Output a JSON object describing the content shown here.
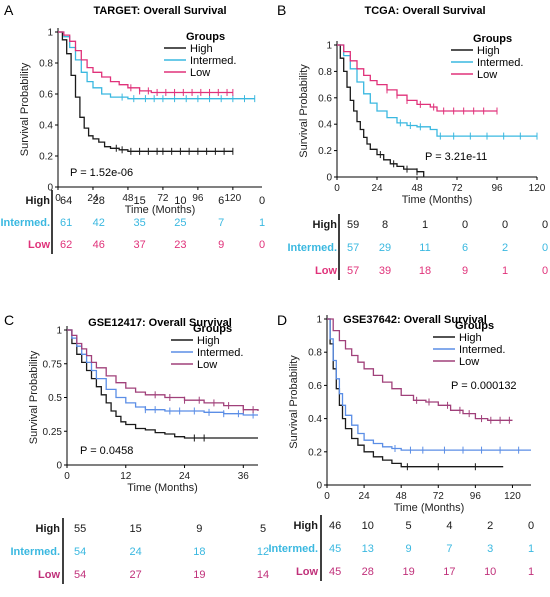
{
  "chart_data": [
    {
      "type": "line",
      "panel_letter": "A",
      "title": "TARGET: Overall Survival",
      "xlabel": "Time (Months)",
      "ylabel": "Survival Probability",
      "xlim": [
        0,
        140
      ],
      "ylim": [
        0,
        1
      ],
      "xticks": [
        0,
        24,
        48,
        72,
        96,
        120
      ],
      "yticks": [
        0,
        0.2,
        0.4,
        0.6,
        0.8,
        1
      ],
      "legend_title": "Groups",
      "legend_position": "top-right",
      "p_value": "P = 1.52e-06",
      "series": [
        {
          "name": "High",
          "color": "#1a1a1a",
          "x": [
            0,
            3,
            6,
            9,
            12,
            15,
            18,
            21,
            24,
            28,
            32,
            36,
            42,
            48,
            60,
            72,
            96,
            120
          ],
          "y": [
            1,
            0.95,
            0.86,
            0.72,
            0.58,
            0.45,
            0.38,
            0.33,
            0.31,
            0.29,
            0.26,
            0.25,
            0.24,
            0.23,
            0.23,
            0.23,
            0.23,
            0.23
          ],
          "censor_x": [
            40,
            44,
            50,
            56,
            62,
            68,
            72,
            78,
            84,
            90,
            96,
            102,
            108,
            114,
            120
          ]
        },
        {
          "name": "Intermed.",
          "color": "#3ab8e0",
          "x": [
            0,
            4,
            8,
            12,
            16,
            20,
            24,
            30,
            36,
            42,
            48,
            60,
            72,
            96,
            120,
            135
          ],
          "y": [
            1,
            0.97,
            0.9,
            0.82,
            0.74,
            0.68,
            0.64,
            0.6,
            0.58,
            0.58,
            0.57,
            0.57,
            0.57,
            0.57,
            0.57,
            0.57
          ],
          "censor_x": [
            44,
            52,
            60,
            66,
            72,
            80,
            88,
            96,
            104,
            112,
            120,
            128,
            135
          ]
        },
        {
          "name": "Low",
          "color": "#e0327a",
          "x": [
            0,
            4,
            8,
            12,
            16,
            20,
            24,
            30,
            36,
            42,
            48,
            56,
            64,
            72,
            96,
            120
          ],
          "y": [
            1,
            0.98,
            0.94,
            0.88,
            0.82,
            0.77,
            0.74,
            0.71,
            0.68,
            0.66,
            0.64,
            0.62,
            0.61,
            0.61,
            0.61,
            0.61
          ],
          "censor_x": [
            50,
            56,
            62,
            68,
            74,
            80,
            86,
            92,
            98,
            104,
            110,
            116,
            120
          ]
        }
      ],
      "risk_table": [
        {
          "group": "High",
          "color": "#1a1a1a",
          "values": [
            "64",
            "28",
            "15",
            "10",
            "6",
            "0"
          ]
        },
        {
          "group": "Intermed.",
          "color": "#3ab8e0",
          "values": [
            "61",
            "42",
            "35",
            "25",
            "7",
            "1"
          ]
        },
        {
          "group": "Low",
          "color": "#e0327a",
          "values": [
            "62",
            "46",
            "37",
            "23",
            "9",
            "0"
          ]
        }
      ]
    },
    {
      "type": "line",
      "panel_letter": "B",
      "title": "TCGA: Overall Survival",
      "xlabel": "Time (Months)",
      "ylabel": "Survival Probability",
      "xlim": [
        0,
        120
      ],
      "ylim": [
        0,
        1
      ],
      "xticks": [
        0,
        24,
        48,
        72,
        96,
        120
      ],
      "yticks": [
        0,
        0.2,
        0.4,
        0.6,
        0.8,
        1
      ],
      "legend_title": "Groups",
      "legend_position": "top-right",
      "p_value": "P = 3.21e-11",
      "series": [
        {
          "name": "High",
          "color": "#1a1a1a",
          "x": [
            0,
            2,
            4,
            6,
            8,
            10,
            12,
            14,
            16,
            18,
            20,
            24,
            28,
            32,
            36,
            40,
            48,
            52
          ],
          "y": [
            1,
            0.9,
            0.8,
            0.68,
            0.58,
            0.5,
            0.42,
            0.36,
            0.3,
            0.25,
            0.21,
            0.17,
            0.13,
            0.1,
            0.08,
            0.06,
            0.04,
            0.0
          ],
          "censor_x": [
            26,
            34,
            42,
            48
          ]
        },
        {
          "name": "Intermed.",
          "color": "#3ab8e0",
          "x": [
            0,
            4,
            8,
            12,
            16,
            20,
            24,
            30,
            36,
            42,
            48,
            56,
            60,
            72,
            96,
            120
          ],
          "y": [
            1,
            0.92,
            0.82,
            0.72,
            0.63,
            0.56,
            0.5,
            0.45,
            0.41,
            0.39,
            0.38,
            0.36,
            0.31,
            0.31,
            0.31,
            0.31
          ],
          "censor_x": [
            38,
            44,
            50,
            62,
            70,
            80,
            90,
            100,
            110,
            120
          ]
        },
        {
          "name": "Low",
          "color": "#e0327a",
          "x": [
            0,
            4,
            8,
            12,
            16,
            20,
            24,
            30,
            36,
            42,
            48,
            56,
            60,
            72,
            96
          ],
          "y": [
            1,
            0.95,
            0.88,
            0.82,
            0.77,
            0.73,
            0.7,
            0.66,
            0.62,
            0.58,
            0.55,
            0.53,
            0.5,
            0.5,
            0.5
          ],
          "censor_x": [
            30,
            36,
            42,
            50,
            58,
            64,
            70,
            76,
            82,
            88,
            96
          ]
        }
      ],
      "risk_table": [
        {
          "group": "High",
          "color": "#1a1a1a",
          "values": [
            "59",
            "8",
            "1",
            "0",
            "0",
            "0"
          ]
        },
        {
          "group": "Intermed.",
          "color": "#3ab8e0",
          "values": [
            "57",
            "29",
            "11",
            "6",
            "2",
            "0"
          ]
        },
        {
          "group": "Low",
          "color": "#e0327a",
          "values": [
            "57",
            "39",
            "18",
            "9",
            "1",
            "0"
          ]
        }
      ]
    },
    {
      "type": "line",
      "panel_letter": "C",
      "title": "GSE12417:  Overall Survival",
      "xlabel": "Time (Months)",
      "ylabel": "Survival Probability",
      "xlim": [
        0,
        39
      ],
      "ylim": [
        0,
        1
      ],
      "xticks": [
        0,
        12,
        24,
        36
      ],
      "yticks": [
        0,
        0.25,
        0.5,
        0.75,
        1
      ],
      "legend_title": "Groups",
      "legend_position": "top-right",
      "p_value": "P = 0.0458",
      "series": [
        {
          "name": "High",
          "color": "#1a1a1a",
          "x": [
            0,
            1,
            2,
            3,
            4,
            5,
            6,
            7,
            8,
            9,
            10,
            11,
            12,
            14,
            16,
            18,
            20,
            22,
            24,
            28,
            32,
            36,
            39
          ],
          "y": [
            1,
            0.9,
            0.82,
            0.76,
            0.7,
            0.64,
            0.58,
            0.52,
            0.46,
            0.4,
            0.36,
            0.32,
            0.3,
            0.27,
            0.26,
            0.24,
            0.23,
            0.21,
            0.2,
            0.2,
            0.2,
            0.2,
            0.2
          ],
          "censor_x": [
            26,
            28
          ]
        },
        {
          "name": "Intermed.",
          "color": "#5b8ee6",
          "x": [
            0,
            1,
            2,
            3,
            4,
            5,
            6,
            8,
            10,
            12,
            14,
            16,
            20,
            24,
            28,
            32,
            36,
            39
          ],
          "y": [
            1,
            0.94,
            0.88,
            0.82,
            0.76,
            0.7,
            0.64,
            0.56,
            0.5,
            0.46,
            0.43,
            0.41,
            0.4,
            0.4,
            0.39,
            0.38,
            0.37,
            0.37
          ],
          "censor_x": [
            16,
            18,
            21,
            23,
            26,
            29,
            32,
            35,
            38
          ]
        },
        {
          "name": "Low",
          "color": "#a0407a",
          "x": [
            0,
            1,
            2,
            3,
            4,
            5,
            6,
            8,
            10,
            12,
            14,
            16,
            20,
            24,
            28,
            32,
            36,
            39
          ],
          "y": [
            1,
            0.96,
            0.9,
            0.86,
            0.81,
            0.76,
            0.72,
            0.66,
            0.61,
            0.57,
            0.54,
            0.52,
            0.5,
            0.48,
            0.46,
            0.44,
            0.41,
            0.4
          ],
          "censor_x": [
            18,
            21,
            24,
            27,
            30,
            33,
            36,
            38
          ]
        }
      ],
      "risk_table": [
        {
          "group": "High",
          "color": "#1a1a1a",
          "values": [
            "55",
            "15",
            "9",
            "5"
          ]
        },
        {
          "group": "Intermed.",
          "color": "#3ab8e0",
          "values": [
            "54",
            "24",
            "18",
            "12"
          ]
        },
        {
          "group": "Low",
          "color": "#c0307a",
          "values": [
            "54",
            "27",
            "19",
            "14"
          ]
        }
      ]
    },
    {
      "type": "line",
      "panel_letter": "D",
      "title": "GSE37642: Overall Survival",
      "xlabel": "Time (Months)",
      "ylabel": "Survival Probability",
      "xlim": [
        0,
        132
      ],
      "ylim": [
        0,
        1
      ],
      "xticks": [
        0,
        24,
        48,
        72,
        96,
        120
      ],
      "yticks": [
        0,
        0.2,
        0.4,
        0.6,
        0.8,
        1
      ],
      "legend_title": "Groups",
      "legend_position": "top-right",
      "p_value": "P = 0.000132",
      "series": [
        {
          "name": "High",
          "color": "#1a1a1a",
          "x": [
            0,
            2,
            4,
            6,
            8,
            10,
            12,
            16,
            20,
            24,
            30,
            36,
            42,
            48,
            60,
            72,
            96,
            114
          ],
          "y": [
            1,
            0.85,
            0.7,
            0.58,
            0.48,
            0.4,
            0.34,
            0.28,
            0.24,
            0.2,
            0.17,
            0.15,
            0.13,
            0.11,
            0.11,
            0.11,
            0.11,
            0.11
          ],
          "censor_x": [
            52,
            72,
            96
          ]
        },
        {
          "name": "Intermed.",
          "color": "#5b8ee6",
          "x": [
            0,
            2,
            4,
            6,
            8,
            10,
            12,
            16,
            20,
            24,
            30,
            36,
            42,
            48,
            60,
            72,
            96,
            132
          ],
          "y": [
            1,
            0.88,
            0.75,
            0.64,
            0.55,
            0.48,
            0.42,
            0.36,
            0.31,
            0.27,
            0.25,
            0.23,
            0.22,
            0.21,
            0.21,
            0.21,
            0.21,
            0.21
          ],
          "censor_x": [
            44,
            54,
            62,
            76,
            88,
            100,
            112,
            124
          ]
        },
        {
          "name": "Low",
          "color": "#a0407a",
          "x": [
            0,
            4,
            8,
            12,
            16,
            20,
            24,
            30,
            36,
            42,
            48,
            56,
            64,
            72,
            80,
            88,
            96,
            104,
            120
          ],
          "y": [
            1,
            0.93,
            0.87,
            0.82,
            0.78,
            0.74,
            0.7,
            0.66,
            0.62,
            0.58,
            0.54,
            0.51,
            0.5,
            0.48,
            0.45,
            0.43,
            0.4,
            0.39,
            0.39
          ],
          "censor_x": [
            58,
            66,
            78,
            86,
            92,
            100,
            106,
            112,
            118
          ]
        }
      ],
      "risk_table": [
        {
          "group": "High",
          "color": "#1a1a1a",
          "values": [
            "46",
            "10",
            "5",
            "4",
            "2",
            "0"
          ]
        },
        {
          "group": "Intermed.",
          "color": "#3ab8e0",
          "values": [
            "45",
            "13",
            "9",
            "7",
            "3",
            "1"
          ]
        },
        {
          "group": "Low",
          "color": "#c0307a",
          "values": [
            "45",
            "28",
            "19",
            "17",
            "10",
            "1"
          ]
        }
      ]
    }
  ]
}
